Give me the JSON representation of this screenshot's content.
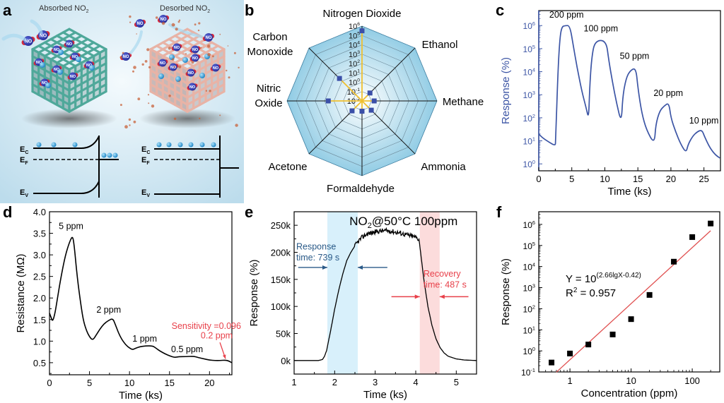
{
  "figure": {
    "panels": [
      "a",
      "b",
      "c",
      "d",
      "e",
      "f"
    ]
  },
  "panel_a": {
    "letter": "a",
    "left_title": "Absorbed NO",
    "left_title_sub": "2",
    "right_title": "Desorbed NO",
    "right_title_sub": "2",
    "molecule_label": "NO",
    "molecule_sub": "2",
    "electron_label": "e",
    "band_labels": {
      "ec": "E",
      "ec_sub": "C",
      "ef": "E",
      "ef_sub": "F",
      "ev": "E",
      "ev_sub": "V"
    },
    "colors": {
      "background": "#d6eaf4",
      "absorbed_lattice": "#4fa89a",
      "desorbed_lattice": "#e8b3a6",
      "electron": "#2f9fd8",
      "molecule": "#d02040"
    }
  },
  "chart_data": [
    {
      "panel": "b",
      "type": "radar",
      "letter": "b",
      "scale": "log",
      "ring_labels": [
        "10",
        "10",
        "10",
        "10",
        "10",
        "10",
        "10",
        "10",
        "10"
      ],
      "ring_exponents": [
        "-2",
        "-1",
        "0",
        "1",
        "2",
        "3",
        "4",
        "5",
        "6"
      ],
      "range_log10": [
        -2,
        6
      ],
      "categories": [
        "Nitrogen Dioxide",
        "Ethanol",
        "Methane",
        "Ammonia",
        "Formaldehyde",
        "Acetone",
        "Nitric Oxide",
        "Carbon Monoxide"
      ],
      "category_lines": [
        [
          "Nitrogen Dioxide"
        ],
        [
          "Ethanol"
        ],
        [
          "Methane"
        ],
        [
          "Ammonia"
        ],
        [
          "Formaldehyde"
        ],
        [
          "Acetone"
        ],
        [
          "Nitric",
          "Oxide"
        ],
        [
          "Carbon",
          "Monoxide"
        ]
      ],
      "values_log10": [
        5.5,
        -0.8,
        -0.7,
        -0.6,
        -0.9,
        -0.5,
        1.6,
        1.4
      ],
      "colors": {
        "fill_outer": "#8fcbe4",
        "fill_inner": "#ffffff",
        "spoke": "#f0c030",
        "marker": "#3b4fa8"
      }
    },
    {
      "panel": "c",
      "type": "line",
      "letter": "c",
      "xlabel": "Time (ks)",
      "ylabel": "Response (%)",
      "yscale": "log",
      "xlim": [
        0,
        27.5
      ],
      "ylim_log10": [
        -0.3,
        6.65
      ],
      "xticks": [
        0,
        5,
        10,
        15,
        20,
        25
      ],
      "yticks_base": "10",
      "yticks_exp": [
        "0",
        "1",
        "2",
        "3",
        "4",
        "5",
        "6"
      ],
      "annotations": [
        {
          "text": "200 ppm",
          "x": 4.2,
          "y_log10": 6.35
        },
        {
          "text": "100 ppm",
          "x": 9.4,
          "y_log10": 5.75
        },
        {
          "text": "50 ppm",
          "x": 14.5,
          "y_log10": 4.55
        },
        {
          "text": "20 ppm",
          "x": 19.6,
          "y_log10": 2.95
        },
        {
          "text": "10 ppm",
          "x": 25.0,
          "y_log10": 1.75
        }
      ],
      "x": [
        0,
        0.5,
        1.5,
        2.5,
        2.55,
        2.9,
        3.2,
        3.5,
        4.0,
        4.7,
        5.2,
        5.8,
        6.5,
        7.2,
        7.55,
        7.7,
        8.0,
        8.5,
        10.2,
        10.6,
        11.2,
        11.8,
        12.5,
        12.7,
        13.2,
        13.8,
        14.7,
        15.0,
        15.6,
        16.3,
        17.5,
        17.7,
        18.3,
        19.0,
        19.7,
        20.0,
        20.7,
        21.5,
        22.3,
        22.6,
        23.3,
        24.0,
        24.7,
        25.1,
        25.9,
        26.7,
        27.4
      ],
      "y": [
        20,
        14,
        9,
        6,
        10,
        10000.0,
        300000.0,
        900000.0,
        1000000.0,
        1000000.0,
        150000.0,
        15000.0,
        1500.0,
        250,
        90,
        2000.0,
        40000.0,
        220000.0,
        230000.0,
        30000.0,
        3000.0,
        400,
        60,
        800,
        5000.0,
        11000.0,
        15000.0,
        2000.0,
        150,
        30,
        7,
        50,
        200,
        330,
        450,
        100,
        25,
        7,
        3,
        7,
        16,
        25,
        30,
        15,
        5,
        2.5,
        1.8
      ],
      "colors": {
        "line": "#3c55a5",
        "axis_label": "#3c55a5"
      }
    },
    {
      "panel": "d",
      "type": "line",
      "letter": "d",
      "xlabel": "Time (ks)",
      "ylabel": "Resistance (MΩ)",
      "xlim": [
        0,
        22.8
      ],
      "ylim": [
        0.22,
        4.0
      ],
      "xticks": [
        0,
        5,
        10,
        15,
        20
      ],
      "yticks": [
        "0.5",
        "1.0",
        "1.5",
        "2.0",
        "2.5",
        "3.0",
        "3.5",
        "4.0"
      ],
      "annotations": [
        {
          "text": "5 ppm",
          "x": 2.7,
          "y": 3.6,
          "color": "#000000"
        },
        {
          "text": "2 ppm",
          "x": 7.4,
          "y": 1.66,
          "color": "#000000"
        },
        {
          "text": "1 ppm",
          "x": 11.9,
          "y": 0.99,
          "color": "#000000"
        },
        {
          "text": "0.5 ppm",
          "x": 17.2,
          "y": 0.74,
          "color": "#000000"
        },
        {
          "text": "Sensitivity =0.096",
          "x": 19.6,
          "y": 1.28,
          "color": "#e8404a"
        },
        {
          "text": "0.2 ppm",
          "x": 20.9,
          "y": 1.06,
          "color": "#e8404a"
        }
      ],
      "x": [
        0,
        0.2,
        0.4,
        0.7,
        1.0,
        1.5,
        2.0,
        2.5,
        2.9,
        3.1,
        3.4,
        3.8,
        4.2,
        4.6,
        5.0,
        5.4,
        5.8,
        6.3,
        6.8,
        7.3,
        7.9,
        8.2,
        8.6,
        9.0,
        9.5,
        10.0,
        10.4,
        10.8,
        11.3,
        12.0,
        12.9,
        13.3,
        13.8,
        14.5,
        15.0,
        15.6,
        16.2,
        17.0,
        18.0,
        18.6,
        19.3,
        20.0,
        20.7,
        21.3,
        22.0,
        22.4,
        22.8
      ],
      "y": [
        1.65,
        1.55,
        1.45,
        1.65,
        2.0,
        2.55,
        3.0,
        3.3,
        3.45,
        3.2,
        2.6,
        2.0,
        1.5,
        1.25,
        1.1,
        1.02,
        1.13,
        1.28,
        1.4,
        1.47,
        1.53,
        1.4,
        1.2,
        1.05,
        0.92,
        0.84,
        0.8,
        0.84,
        0.87,
        0.89,
        0.89,
        0.84,
        0.77,
        0.7,
        0.66,
        0.62,
        0.64,
        0.64,
        0.65,
        0.62,
        0.59,
        0.56,
        0.55,
        0.55,
        0.56,
        0.54,
        0.5
      ],
      "arrow": {
        "from": [
          21.3,
          0.97
        ],
        "to": [
          22.0,
          0.59
        ],
        "color": "#e8404a"
      },
      "colors": {
        "line": "#000000"
      }
    },
    {
      "panel": "e",
      "type": "line",
      "letter": "e",
      "title": "NO",
      "title_sub": "2",
      "title_rest": "@50°C 100ppm",
      "xlabel": "Time (ks)",
      "ylabel": "Response (%)",
      "xlim": [
        1,
        5.5
      ],
      "ylim": [
        -25,
        275
      ],
      "xticks": [
        1,
        2,
        3,
        4,
        5
      ],
      "yticks": [
        0,
        50,
        100,
        150,
        200,
        250
      ],
      "ytick_labels": [
        "0k",
        "50k",
        "100k",
        "150k",
        "200k",
        "250k"
      ],
      "y_unit": "k",
      "bands": [
        {
          "name": "response",
          "x0": 1.82,
          "x1": 2.57,
          "color": "#d8f0fb"
        },
        {
          "name": "recovery",
          "x0": 4.1,
          "x1": 4.59,
          "color": "#fcdcdc"
        }
      ],
      "annotations": [
        {
          "lines": [
            "Response",
            "time: 739 s"
          ],
          "color": "#2a5a88"
        },
        {
          "lines": [
            "Recovery",
            "time: 487 s"
          ],
          "color": "#e8404a"
        }
      ],
      "x": [
        1.0,
        1.6,
        1.7,
        1.75,
        1.8,
        1.9,
        2.0,
        2.1,
        2.2,
        2.3,
        2.4,
        2.5,
        2.6,
        2.7,
        2.8,
        3.0,
        3.2,
        3.4,
        3.6,
        3.8,
        4.0,
        4.08,
        4.12,
        4.2,
        4.3,
        4.4,
        4.5,
        4.6,
        4.7,
        4.8,
        5.0,
        5.2,
        5.5
      ],
      "y": [
        0,
        0,
        2,
        8,
        18,
        55,
        95,
        130,
        160,
        185,
        200,
        212,
        222,
        229,
        234,
        238,
        240,
        239,
        236,
        232,
        228,
        224,
        200,
        150,
        100,
        65,
        40,
        24,
        14,
        8,
        3,
        1,
        0
      ],
      "noise_from_x": 2.5,
      "noise_to_x": 4.08,
      "colors": {
        "line": "#000000"
      }
    },
    {
      "panel": "f",
      "type": "scatter",
      "letter": "f",
      "xlabel": "Concentration (ppm)",
      "ylabel": "Response (%)",
      "xscale": "log",
      "yscale": "log",
      "xlim_log10": [
        -0.51,
        2.45
      ],
      "ylim_log10": [
        -1.0,
        6.6
      ],
      "xticks": [
        "1",
        "10",
        "100"
      ],
      "xticks_values": [
        1,
        10,
        100
      ],
      "yticks_base": "10",
      "yticks_exp": [
        "-1",
        "0",
        "1",
        "2",
        "3",
        "4",
        "5",
        "6"
      ],
      "x": [
        0.5,
        1,
        2,
        5,
        10,
        20,
        50,
        100,
        200
      ],
      "y": [
        0.28,
        0.75,
        2.0,
        6.0,
        32,
        450,
        17000,
        250000,
        1100000
      ],
      "fit": {
        "slope": 2.66,
        "intercept": -0.42,
        "x_range": [
          0.6,
          200
        ],
        "color": "#e05050"
      },
      "equation_prefix": "Y = 10",
      "equation_exp": "(2.66lgX-0.42)",
      "r2_label": "R",
      "r2_sup": "2",
      "r2_value": " = 0.957",
      "colors": {
        "marker": "#000000"
      }
    }
  ]
}
